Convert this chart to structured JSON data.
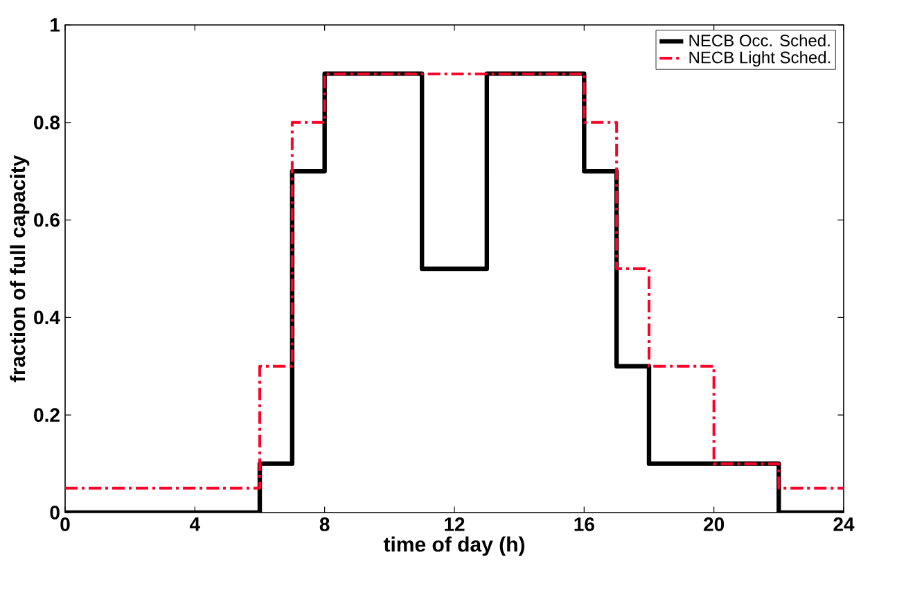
{
  "chart_data": {
    "type": "step",
    "xlabel": "time of day (h)",
    "ylabel": "fraction of full capacity",
    "xlim": [
      0,
      24
    ],
    "ylim": [
      0,
      1
    ],
    "xticks": [
      0,
      4,
      8,
      12,
      16,
      20,
      24
    ],
    "yticks": [
      0,
      0.2,
      0.4,
      0.6,
      0.8,
      1
    ],
    "grid": false,
    "legend": "top right",
    "x": [
      0,
      1,
      2,
      3,
      4,
      5,
      6,
      7,
      8,
      9,
      10,
      11,
      12,
      13,
      14,
      15,
      16,
      17,
      18,
      19,
      20,
      21,
      22,
      23,
      24
    ],
    "series": [
      {
        "name": "NECB Occ. Sched.",
        "color": "#000000",
        "line_style": "solid",
        "values": [
          0,
          0,
          0,
          0,
          0,
          0,
          0.1,
          0.7,
          0.9,
          0.9,
          0.9,
          0.5,
          0.5,
          0.9,
          0.9,
          0.9,
          0.7,
          0.3,
          0.1,
          0.1,
          0.1,
          0.1,
          0,
          0,
          0
        ]
      },
      {
        "name": "NECB Light Sched.",
        "color": "#ff0028",
        "line_style": "dashed",
        "values": [
          0.05,
          0.05,
          0.05,
          0.05,
          0.05,
          0.05,
          0.3,
          0.8,
          0.9,
          0.9,
          0.9,
          0.9,
          0.9,
          0.9,
          0.9,
          0.9,
          0.8,
          0.5,
          0.3,
          0.3,
          0.1,
          0.1,
          0.05,
          0.05,
          0.05
        ]
      }
    ]
  }
}
